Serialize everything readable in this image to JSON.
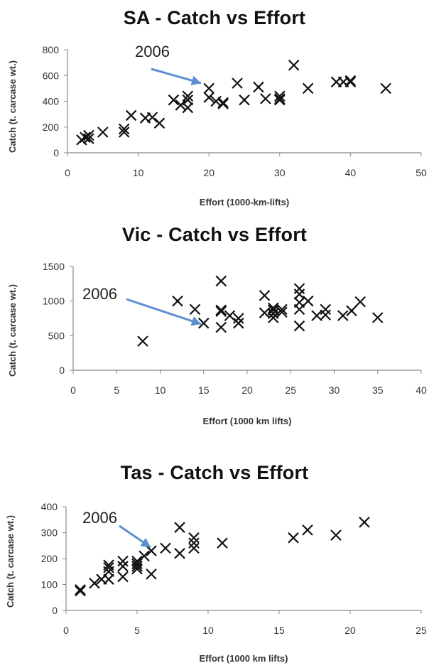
{
  "chart_data": [
    {
      "type": "scatter",
      "title": "SA - Catch vs Effort",
      "xlabel": "Effort (1000-km-lifts)",
      "ylabel": "Catch (t. carcase wt.)",
      "xlim": [
        0,
        50
      ],
      "ylim": [
        0,
        800
      ],
      "xticks": [
        "0",
        "10",
        "20",
        "30",
        "40",
        "50"
      ],
      "yticks": [
        "0",
        "200",
        "400",
        "600",
        "800"
      ],
      "marker": "x",
      "annotation": {
        "text": "2006",
        "x": 20,
        "y": 500
      },
      "points": [
        [
          2,
          100
        ],
        [
          2.5,
          120
        ],
        [
          3,
          110
        ],
        [
          3,
          135
        ],
        [
          5,
          160
        ],
        [
          8,
          160
        ],
        [
          8,
          185
        ],
        [
          9,
          290
        ],
        [
          11,
          270
        ],
        [
          12,
          275
        ],
        [
          13,
          230
        ],
        [
          15,
          410
        ],
        [
          16,
          370
        ],
        [
          17,
          350
        ],
        [
          17,
          410
        ],
        [
          17,
          440
        ],
        [
          20,
          500
        ],
        [
          20,
          430
        ],
        [
          21,
          400
        ],
        [
          22,
          380
        ],
        [
          22,
          390
        ],
        [
          24,
          540
        ],
        [
          25,
          410
        ],
        [
          27,
          510
        ],
        [
          28,
          420
        ],
        [
          30,
          410
        ],
        [
          30,
          420
        ],
        [
          30,
          440
        ],
        [
          32,
          680
        ],
        [
          34,
          500
        ],
        [
          38,
          550
        ],
        [
          39,
          550
        ],
        [
          40,
          560
        ],
        [
          40,
          550
        ],
        [
          45,
          500
        ]
      ]
    },
    {
      "type": "scatter",
      "title": "Vic - Catch vs Effort",
      "xlabel": "Effort (1000 km lifts)",
      "ylabel": "Catch (t. carcase wt.)",
      "xlim": [
        0,
        40
      ],
      "ylim": [
        0,
        1500
      ],
      "xticks": [
        "0",
        "5",
        "10",
        "15",
        "20",
        "25",
        "30",
        "35",
        "40"
      ],
      "yticks": [
        "0",
        "500",
        "1000",
        "1500"
      ],
      "marker": "x",
      "annotation": {
        "text": "2006",
        "x": 15,
        "y": 680
      },
      "points": [
        [
          8,
          420
        ],
        [
          12,
          1000
        ],
        [
          14,
          880
        ],
        [
          15,
          680
        ],
        [
          17,
          1290
        ],
        [
          17,
          870
        ],
        [
          17,
          850
        ],
        [
          17,
          620
        ],
        [
          18,
          790
        ],
        [
          19,
          750
        ],
        [
          19,
          680
        ],
        [
          22,
          1080
        ],
        [
          22,
          830
        ],
        [
          23,
          900
        ],
        [
          23,
          870
        ],
        [
          23,
          820
        ],
        [
          23,
          760
        ],
        [
          24,
          880
        ],
        [
          24,
          840
        ],
        [
          26,
          1180
        ],
        [
          26,
          1100
        ],
        [
          26,
          980
        ],
        [
          26,
          880
        ],
        [
          26,
          640
        ],
        [
          27,
          1000
        ],
        [
          28,
          790
        ],
        [
          29,
          880
        ],
        [
          29,
          800
        ],
        [
          31,
          790
        ],
        [
          32,
          860
        ],
        [
          33,
          990
        ],
        [
          35,
          760
        ]
      ]
    },
    {
      "type": "scatter",
      "title": "Tas - Catch vs Effort",
      "xlabel": "Effort (1000 km lifts)",
      "ylabel": "Catch (t. carcase wt.)",
      "xlim": [
        0,
        25
      ],
      "ylim": [
        0,
        400
      ],
      "xticks": [
        "0",
        "5",
        "10",
        "15",
        "20",
        "25"
      ],
      "yticks": [
        "0",
        "100",
        "200",
        "300",
        "400"
      ],
      "marker": "x",
      "annotation": {
        "text": "2006",
        "x": 6,
        "y": 230
      },
      "points": [
        [
          1,
          75
        ],
        [
          1,
          80
        ],
        [
          2,
          105
        ],
        [
          2.5,
          120
        ],
        [
          3,
          120
        ],
        [
          3,
          150
        ],
        [
          3,
          165
        ],
        [
          3,
          175
        ],
        [
          4,
          130
        ],
        [
          4,
          170
        ],
        [
          4,
          190
        ],
        [
          5,
          160
        ],
        [
          5,
          170
        ],
        [
          5,
          180
        ],
        [
          5,
          190
        ],
        [
          5.5,
          210
        ],
        [
          6,
          140
        ],
        [
          6,
          230
        ],
        [
          7,
          240
        ],
        [
          8,
          220
        ],
        [
          8,
          320
        ],
        [
          9,
          240
        ],
        [
          9,
          260
        ],
        [
          9,
          280
        ],
        [
          11,
          260
        ],
        [
          16,
          280
        ],
        [
          17,
          310
        ],
        [
          19,
          290
        ],
        [
          21,
          340
        ]
      ]
    }
  ]
}
